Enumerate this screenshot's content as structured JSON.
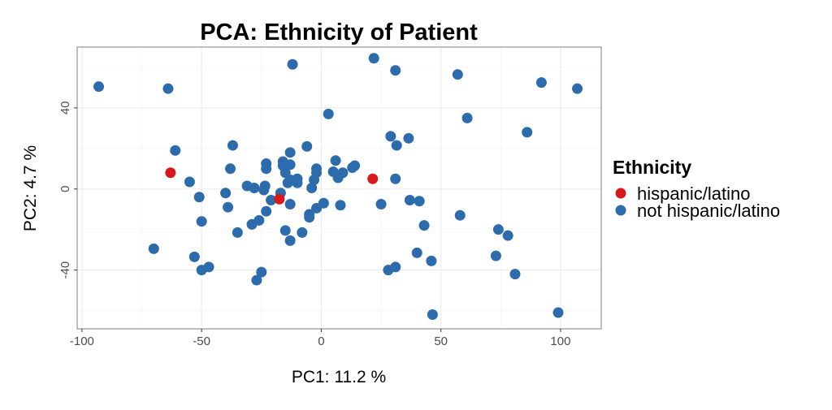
{
  "chart_data": {
    "type": "scatter",
    "title": "PCA: Ethnicity of Patient",
    "xlabel": "PC1: 11.2 %",
    "ylabel": "PC2: 4.7 %",
    "xlim": [
      -102,
      117
    ],
    "ylim": [
      -69,
      70
    ],
    "xticks": [
      -100,
      -50,
      0,
      50,
      100
    ],
    "yticks": [
      -40,
      0,
      40
    ],
    "grid": true,
    "legend": {
      "title": "Ethnicity",
      "position": "right"
    },
    "series": [
      {
        "name": "hispanic/latino",
        "color": "#D7191C",
        "points": [
          [
            -63,
            8
          ],
          [
            -17.5,
            -5
          ],
          [
            21.5,
            5
          ]
        ]
      },
      {
        "name": "not hispanic/latino",
        "color": "#2C6BAC",
        "points": [
          [
            -93,
            50.5
          ],
          [
            -64,
            49.5
          ],
          [
            -12,
            61.5
          ],
          [
            22,
            64.5
          ],
          [
            31,
            58.5
          ],
          [
            57,
            56.5
          ],
          [
            92,
            52.5
          ],
          [
            107,
            49.5
          ],
          [
            3,
            37
          ],
          [
            61,
            35
          ],
          [
            86,
            28
          ],
          [
            -61,
            19
          ],
          [
            -37,
            21.5
          ],
          [
            -6,
            21
          ],
          [
            29,
            26
          ],
          [
            31.5,
            21.5
          ],
          [
            36.5,
            25
          ],
          [
            -38,
            10
          ],
          [
            -23,
            12.5
          ],
          [
            -23,
            10
          ],
          [
            -16,
            13.5
          ],
          [
            -16,
            11.5
          ],
          [
            -13,
            18
          ],
          [
            -13,
            12
          ],
          [
            -15,
            8
          ],
          [
            -10,
            5
          ],
          [
            -2,
            10
          ],
          [
            -2,
            8
          ],
          [
            6,
            14
          ],
          [
            5,
            8.5
          ],
          [
            9,
            8
          ],
          [
            13,
            10.5
          ],
          [
            14,
            11.5
          ],
          [
            -55,
            3.5
          ],
          [
            -31,
            1.5
          ],
          [
            -28,
            0.5
          ],
          [
            -24,
            -0.5
          ],
          [
            -23.5,
            1.5
          ],
          [
            -17,
            -2
          ],
          [
            -14,
            3
          ],
          [
            -13,
            4.5
          ],
          [
            -10,
            3
          ],
          [
            -4,
            0.5
          ],
          [
            -3,
            4.5
          ],
          [
            7,
            5.5
          ],
          [
            31,
            5
          ],
          [
            -40,
            -2
          ],
          [
            -51,
            -4
          ],
          [
            -21,
            -5.5
          ],
          [
            -13,
            -7.5
          ],
          [
            -5,
            -12.5
          ],
          [
            -2,
            -9.5
          ],
          [
            1,
            -7
          ],
          [
            8,
            -8
          ],
          [
            25,
            -7.5
          ],
          [
            37,
            -5.5
          ],
          [
            41,
            -6
          ],
          [
            58,
            -13
          ],
          [
            -39,
            -9
          ],
          [
            -23,
            -11
          ],
          [
            -26,
            -15.5
          ],
          [
            -29,
            -17.5
          ],
          [
            -15,
            -20.5
          ],
          [
            -8,
            -21.5
          ],
          [
            -35,
            -21.5
          ],
          [
            -50,
            -16
          ],
          [
            -5,
            -14
          ],
          [
            43,
            -18
          ],
          [
            74,
            -20
          ],
          [
            78,
            -23
          ],
          [
            -70,
            -29.5
          ],
          [
            -53,
            -33.5
          ],
          [
            -47,
            -38.5
          ],
          [
            -50,
            -40
          ],
          [
            -25,
            -41
          ],
          [
            -27,
            -45
          ],
          [
            -13,
            -25.5
          ],
          [
            28,
            -40
          ],
          [
            31,
            -38.5
          ],
          [
            40,
            -31.5
          ],
          [
            46,
            -35.5
          ],
          [
            73,
            -33
          ],
          [
            81,
            -42
          ],
          [
            46.5,
            -62
          ],
          [
            99,
            -61
          ]
        ]
      }
    ]
  }
}
